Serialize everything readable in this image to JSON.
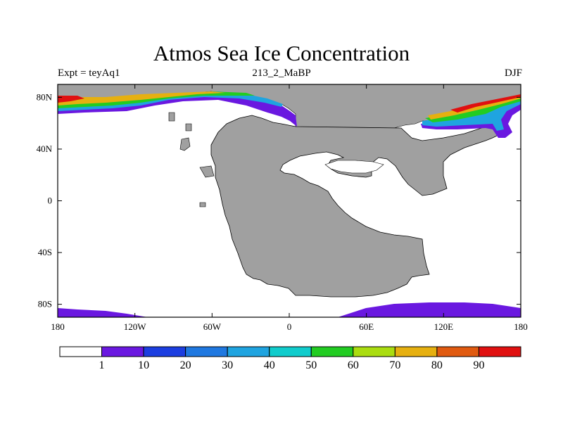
{
  "title": "Atmos Sea Ice Concentration",
  "subtitle_left": "Expt = teyAq1",
  "subtitle_center": "213_2_MaBP",
  "subtitle_right": "DJF",
  "map": {
    "lon_range": [
      -180,
      180
    ],
    "lat_range": [
      -90,
      90
    ],
    "land_color": "#a0a0a0",
    "ocean_color": "#ffffff"
  },
  "x_ticks": [
    {
      "value": -180,
      "label": "180"
    },
    {
      "value": -120,
      "label": "120W"
    },
    {
      "value": -60,
      "label": "60W"
    },
    {
      "value": 0,
      "label": "0"
    },
    {
      "value": 60,
      "label": "60E"
    },
    {
      "value": 120,
      "label": "120E"
    },
    {
      "value": 180,
      "label": "180"
    }
  ],
  "y_ticks": [
    {
      "value": 80,
      "label": "80N"
    },
    {
      "value": 40,
      "label": "40N"
    },
    {
      "value": 0,
      "label": "0"
    },
    {
      "value": -40,
      "label": "40S"
    },
    {
      "value": -80,
      "label": "80S"
    }
  ],
  "colorbar": {
    "colors": [
      "#ffffff",
      "#6a18e0",
      "#1c3ee0",
      "#1f78e0",
      "#1fa4e0",
      "#10cccc",
      "#22cc22",
      "#aadd10",
      "#e6b010",
      "#e05a10",
      "#e01010"
    ],
    "labels": [
      "1",
      "10",
      "20",
      "30",
      "40",
      "50",
      "60",
      "70",
      "80",
      "90"
    ]
  }
}
